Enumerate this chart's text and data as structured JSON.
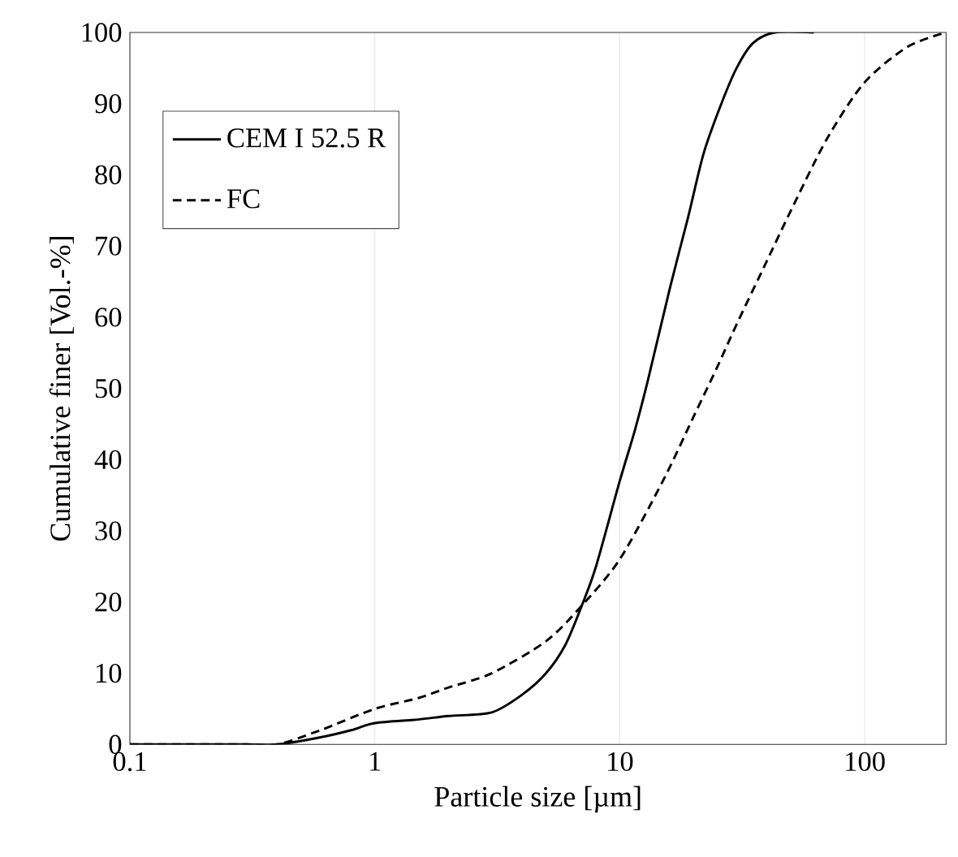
{
  "chart_data": {
    "type": "line",
    "xlabel": "Particle size [µm]",
    "ylabel": "Cumulative finer [Vol.-%]",
    "log": "x",
    "grid": "x",
    "legend": "top left",
    "xlim": [
      0.1,
      215
    ],
    "ylim": [
      0,
      100
    ],
    "xticks": [
      0.1,
      1,
      10,
      100
    ],
    "yticks": [
      0,
      10,
      20,
      30,
      40,
      50,
      60,
      70,
      80,
      90,
      100
    ],
    "series": [
      {
        "name": "CEM I 52.5 R",
        "color": "#000000",
        "line_style": "solid",
        "x": [
          0.1,
          0.3,
          0.4,
          0.6,
          0.8,
          1,
          1.5,
          2,
          3,
          4,
          5,
          6,
          7,
          8,
          10,
          11.5,
          13,
          16,
          19,
          22,
          26,
          30,
          35,
          43,
          62
        ],
        "values": [
          0,
          0,
          0,
          1,
          2,
          3,
          3.5,
          4,
          4.5,
          7,
          10,
          14,
          19.5,
          25,
          37,
          44,
          51,
          64,
          74,
          83,
          90,
          95,
          98.5,
          100,
          100
        ]
      },
      {
        "name": "FC",
        "color": "#000000",
        "line_style": "dashed",
        "x": [
          0.1,
          0.3,
          0.4,
          0.6,
          1,
          1.5,
          2,
          3,
          5,
          7,
          10,
          15,
          20,
          25,
          30,
          40,
          50,
          70,
          100,
          150,
          215
        ],
        "values": [
          0,
          0,
          0,
          2,
          5,
          6.5,
          8,
          10,
          14.5,
          19.5,
          26,
          37,
          46,
          53,
          59,
          68,
          75,
          85,
          93,
          98,
          100
        ]
      }
    ]
  }
}
